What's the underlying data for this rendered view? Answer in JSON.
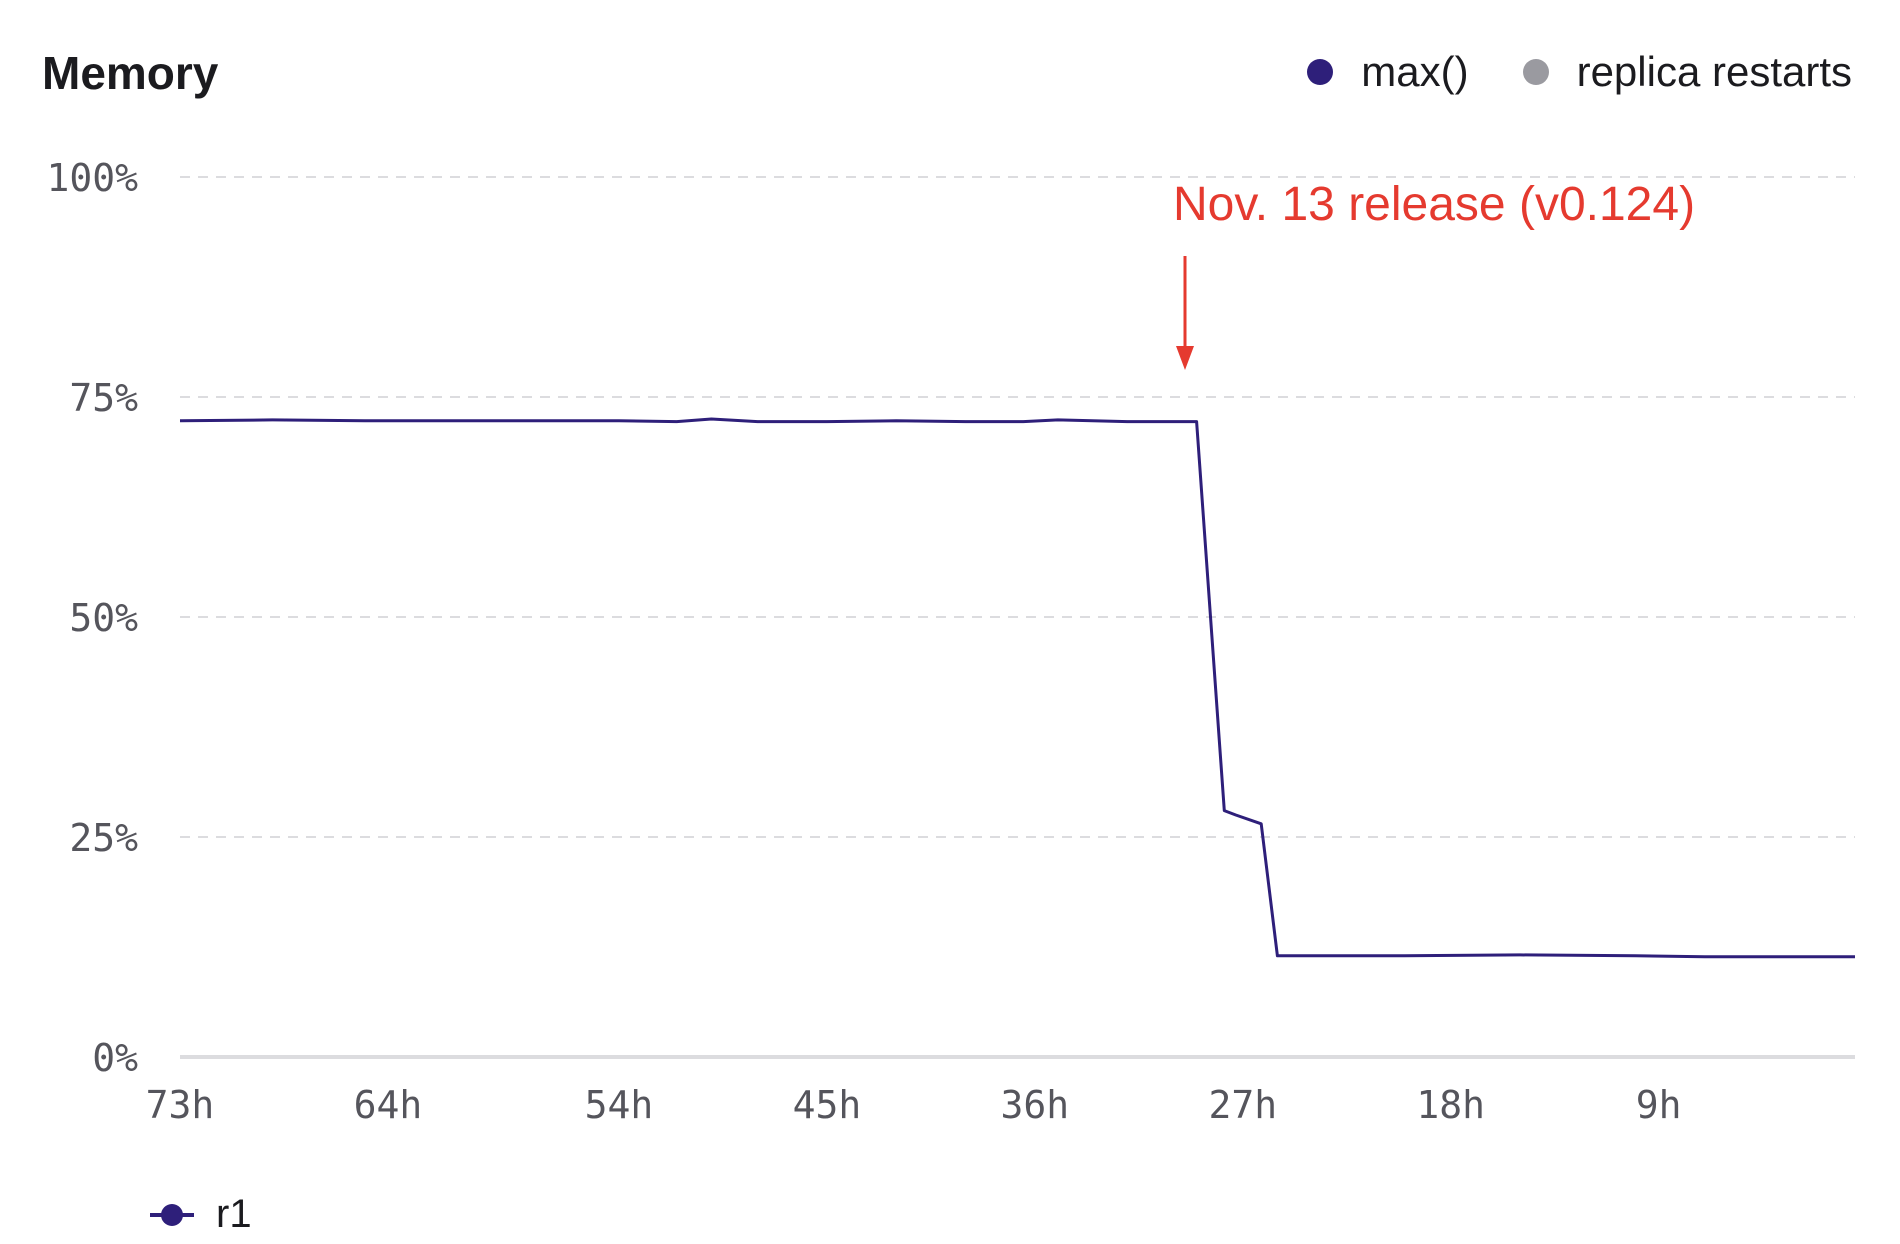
{
  "colors": {
    "series": "#2e1f7a",
    "restarts": "#9a9aa0",
    "annotation": "#e53a2f",
    "grid": "#dcdcdf",
    "axis_text": "#55555c"
  },
  "chart_data": {
    "type": "line",
    "title": "Memory",
    "xlabel": "",
    "ylabel": "",
    "x_unit": "hours ago",
    "xlim": [
      73,
      0.5
    ],
    "ylim": [
      0,
      100
    ],
    "y_ticks": [
      "100%",
      "75%",
      "50%",
      "25%",
      "0%"
    ],
    "y_tick_values": [
      100,
      75,
      50,
      25,
      0
    ],
    "x_ticks": [
      "73h",
      "64h",
      "54h",
      "45h",
      "36h",
      "27h",
      "18h",
      "9h"
    ],
    "x_tick_values": [
      73,
      64,
      54,
      45,
      36,
      27,
      18,
      9
    ],
    "grid": true,
    "legend": [
      {
        "name": "max()",
        "color": "#2e1f7a"
      },
      {
        "name": "replica restarts",
        "color": "#9a9aa0"
      }
    ],
    "legend_placement": "top-right",
    "series": [
      {
        "name": "r1",
        "color": "#2e1f7a",
        "x": [
          73,
          69,
          65,
          61,
          58,
          56,
          54,
          51.5,
          50,
          48,
          45,
          42,
          39,
          36.5,
          35,
          32,
          29.5,
          29,
          27.8,
          27.3,
          26.2,
          25.5,
          20,
          15,
          10,
          7,
          5,
          0.5
        ],
        "y": [
          72.3,
          72.4,
          72.3,
          72.3,
          72.3,
          72.3,
          72.3,
          72.2,
          72.5,
          72.2,
          72.2,
          72.3,
          72.2,
          72.2,
          72.4,
          72.2,
          72.2,
          72.2,
          28,
          27.5,
          26.5,
          11.5,
          11.5,
          11.6,
          11.5,
          11.4,
          11.4,
          11.4
        ]
      }
    ],
    "annotations": [
      {
        "text": "Nov. 13 release (v0.124)",
        "x": 29.5
      }
    ]
  }
}
